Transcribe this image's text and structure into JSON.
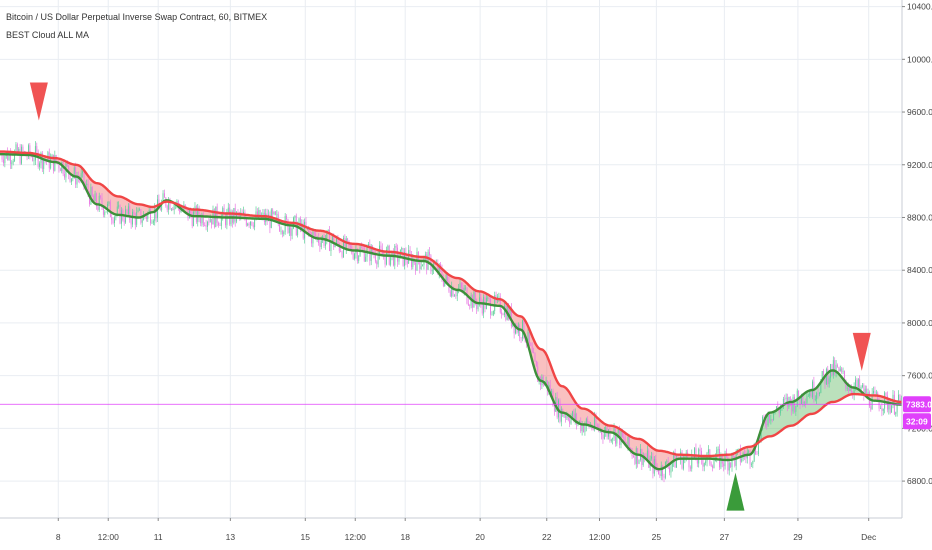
{
  "header": {
    "title": "Bitcoin / US Dollar Perpetual Inverse Swap Contract, 60, BITMEX",
    "indicator": "BEST Cloud ALL MA"
  },
  "price_badge": {
    "price": "7383.0",
    "countdown": "32:09",
    "color": "#e040fb"
  },
  "colors": {
    "bull_candle": "#5fcf9a",
    "bear_candle": "#e97be3",
    "fast_ma": "#3d8f3a",
    "slow_ma": "#f04545",
    "cloud_bull": "#4caf50",
    "cloud_bear": "#f05a5a",
    "sell_marker": "#f05353",
    "buy_marker": "#3a9b3a"
  },
  "chart_data": {
    "type": "line",
    "ylim": [
      6520,
      10450
    ],
    "y_ticks": [
      10400,
      10000,
      9600,
      9200,
      8800,
      8400,
      8000,
      7600,
      7200,
      6800
    ],
    "y_tick_labels": [
      "10400.0",
      "10000.0",
      "9600.0",
      "9200.0",
      "8800.0",
      "8400.0",
      "8000.0",
      "7600.0",
      "7200.0",
      "6800.0"
    ],
    "x_range_hours": [
      0,
      650
    ],
    "x_ticks": [
      {
        "label": "8",
        "hour": 42
      },
      {
        "label": "12:00",
        "hour": 78
      },
      {
        "label": "11",
        "hour": 114
      },
      {
        "label": "13",
        "hour": 166
      },
      {
        "label": "15",
        "hour": 220
      },
      {
        "label": "12:00",
        "hour": 256
      },
      {
        "label": "18",
        "hour": 292
      },
      {
        "label": "20",
        "hour": 346
      },
      {
        "label": "22",
        "hour": 394
      },
      {
        "label": "12:00",
        "hour": 432
      },
      {
        "label": "25",
        "hour": 473
      },
      {
        "label": "27",
        "hour": 522
      },
      {
        "label": "29",
        "hour": 575
      },
      {
        "label": "Dec",
        "hour": 626
      }
    ],
    "series": [
      {
        "key": "slow_ma",
        "x": [
          0,
          20,
          40,
          55,
          70,
          85,
          100,
          110,
          120,
          140,
          165,
          190,
          210,
          230,
          255,
          280,
          305,
          330,
          345,
          360,
          375,
          390,
          405,
          420,
          440,
          460,
          475,
          490,
          510,
          525,
          540,
          555,
          570,
          585,
          600,
          615,
          630,
          650
        ],
        "y": [
          9300,
          9290,
          9250,
          9200,
          9060,
          8960,
          8900,
          8880,
          8920,
          8860,
          8830,
          8810,
          8760,
          8700,
          8600,
          8540,
          8500,
          8340,
          8240,
          8180,
          8050,
          7800,
          7520,
          7350,
          7220,
          7120,
          7030,
          7000,
          6990,
          7000,
          7060,
          7140,
          7220,
          7310,
          7400,
          7460,
          7450,
          7400
        ]
      },
      {
        "key": "fast_ma",
        "x": [
          0,
          20,
          40,
          55,
          70,
          85,
          100,
          110,
          120,
          140,
          165,
          190,
          210,
          230,
          255,
          280,
          305,
          330,
          345,
          360,
          375,
          390,
          405,
          420,
          440,
          460,
          475,
          490,
          510,
          525,
          540,
          555,
          570,
          585,
          600,
          615,
          630,
          650
        ],
        "y": [
          9280,
          9275,
          9220,
          9110,
          8900,
          8820,
          8800,
          8840,
          8930,
          8810,
          8800,
          8790,
          8740,
          8640,
          8550,
          8510,
          8470,
          8250,
          8150,
          8130,
          7950,
          7560,
          7320,
          7230,
          7170,
          7000,
          6890,
          6970,
          6970,
          6960,
          7000,
          7320,
          7400,
          7490,
          7640,
          7510,
          7410,
          7380
        ]
      }
    ],
    "markers": [
      {
        "type": "sell",
        "hour": 28,
        "price": 9680
      },
      {
        "type": "buy",
        "hour": 530,
        "price": 6720
      },
      {
        "type": "sell",
        "hour": 621,
        "price": 7780
      }
    ],
    "last_price": 7383.0
  }
}
